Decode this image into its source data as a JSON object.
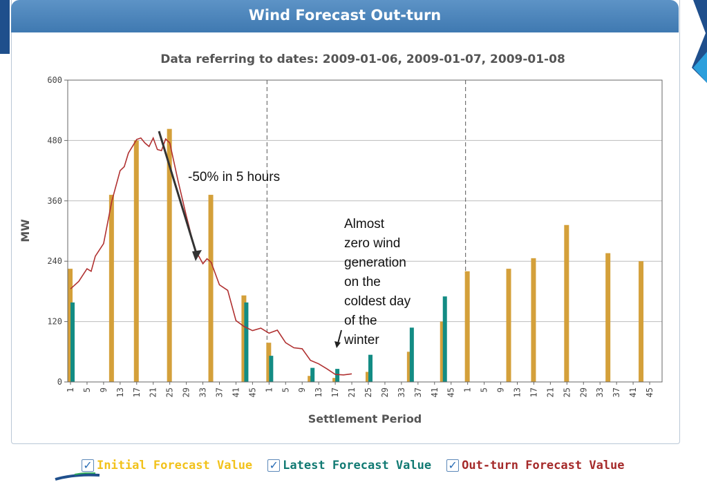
{
  "header": {
    "title": "Wind Forecast Out-turn"
  },
  "chart_data": {
    "type": "bar",
    "subtitle": "Data referring to dates: 2009-01-06, 2009-01-07, 2009-01-08",
    "xlabel": "Settlement Period",
    "ylabel": "MW",
    "ylim": [
      0,
      600
    ],
    "yticks": [
      0,
      120,
      240,
      360,
      480,
      600
    ],
    "xticks": [
      "1",
      "5",
      "9",
      "13",
      "17",
      "21",
      "25",
      "29",
      "33",
      "37",
      "41",
      "45",
      "1",
      "5",
      "9",
      "13",
      "17",
      "21",
      "25",
      "29",
      "33",
      "37",
      "41",
      "45",
      "1",
      "5",
      "9",
      "13",
      "17",
      "21",
      "25",
      "29",
      "33",
      "37",
      "41",
      "45"
    ],
    "day_dividers_after_period_index": [
      48,
      96
    ],
    "grid": true,
    "series": [
      {
        "name": "Initial Forecast Value",
        "color": "#d4a03a",
        "points": [
          [
            1,
            225
          ],
          [
            11,
            372
          ],
          [
            17,
            480
          ],
          [
            25,
            503
          ],
          [
            35,
            372
          ],
          [
            43,
            172
          ],
          [
            49,
            78
          ],
          [
            59,
            12
          ],
          [
            65,
            8
          ],
          [
            73,
            20
          ],
          [
            83,
            60
          ],
          [
            91,
            120
          ],
          [
            97,
            220
          ],
          [
            107,
            225
          ],
          [
            113,
            246
          ],
          [
            121,
            312
          ],
          [
            131,
            256
          ],
          [
            139,
            240
          ]
        ]
      },
      {
        "name": "Latest Forecast Value",
        "color": "#138c84",
        "points": [
          [
            1,
            158
          ],
          [
            43,
            158
          ],
          [
            49,
            52
          ],
          [
            59,
            28
          ],
          [
            65,
            26
          ],
          [
            73,
            54
          ],
          [
            83,
            108
          ],
          [
            91,
            170
          ]
        ]
      },
      {
        "name": "Out-turn Forecast Value",
        "color": "#b03030",
        "points": [
          [
            1,
            185
          ],
          [
            3,
            200
          ],
          [
            5,
            225
          ],
          [
            6,
            220
          ],
          [
            7,
            250
          ],
          [
            9,
            275
          ],
          [
            11,
            360
          ],
          [
            13,
            420
          ],
          [
            14,
            428
          ],
          [
            15,
            455
          ],
          [
            17,
            482
          ],
          [
            18,
            485
          ],
          [
            19,
            475
          ],
          [
            20,
            468
          ],
          [
            21,
            485
          ],
          [
            22,
            462
          ],
          [
            23,
            460
          ],
          [
            24,
            483
          ],
          [
            25,
            475
          ],
          [
            27,
            400
          ],
          [
            29,
            330
          ],
          [
            31,
            265
          ],
          [
            33,
            235
          ],
          [
            34,
            245
          ],
          [
            35,
            238
          ],
          [
            37,
            193
          ],
          [
            39,
            182
          ],
          [
            41,
            122
          ],
          [
            43,
            110
          ],
          [
            45,
            102
          ],
          [
            47,
            107
          ],
          [
            49,
            97
          ],
          [
            51,
            103
          ],
          [
            53,
            78
          ],
          [
            55,
            68
          ],
          [
            57,
            66
          ],
          [
            59,
            43
          ],
          [
            61,
            36
          ],
          [
            63,
            26
          ],
          [
            65,
            15
          ],
          [
            67,
            14
          ],
          [
            69,
            16
          ]
        ]
      }
    ],
    "annotations": [
      {
        "text": "-50% in 5 hours"
      },
      {
        "lines": [
          "Almost",
          "zero wind",
          "generation",
          "on the",
          "coldest day",
          "of the",
          "winter"
        ]
      }
    ]
  },
  "legend": [
    {
      "label": "Initial Forecast Value",
      "color": "#f2c21b"
    },
    {
      "label": "Latest Forecast Value",
      "color": "#117a73"
    },
    {
      "label": "Out-turn Forecast Value",
      "color": "#a52a2a"
    }
  ]
}
